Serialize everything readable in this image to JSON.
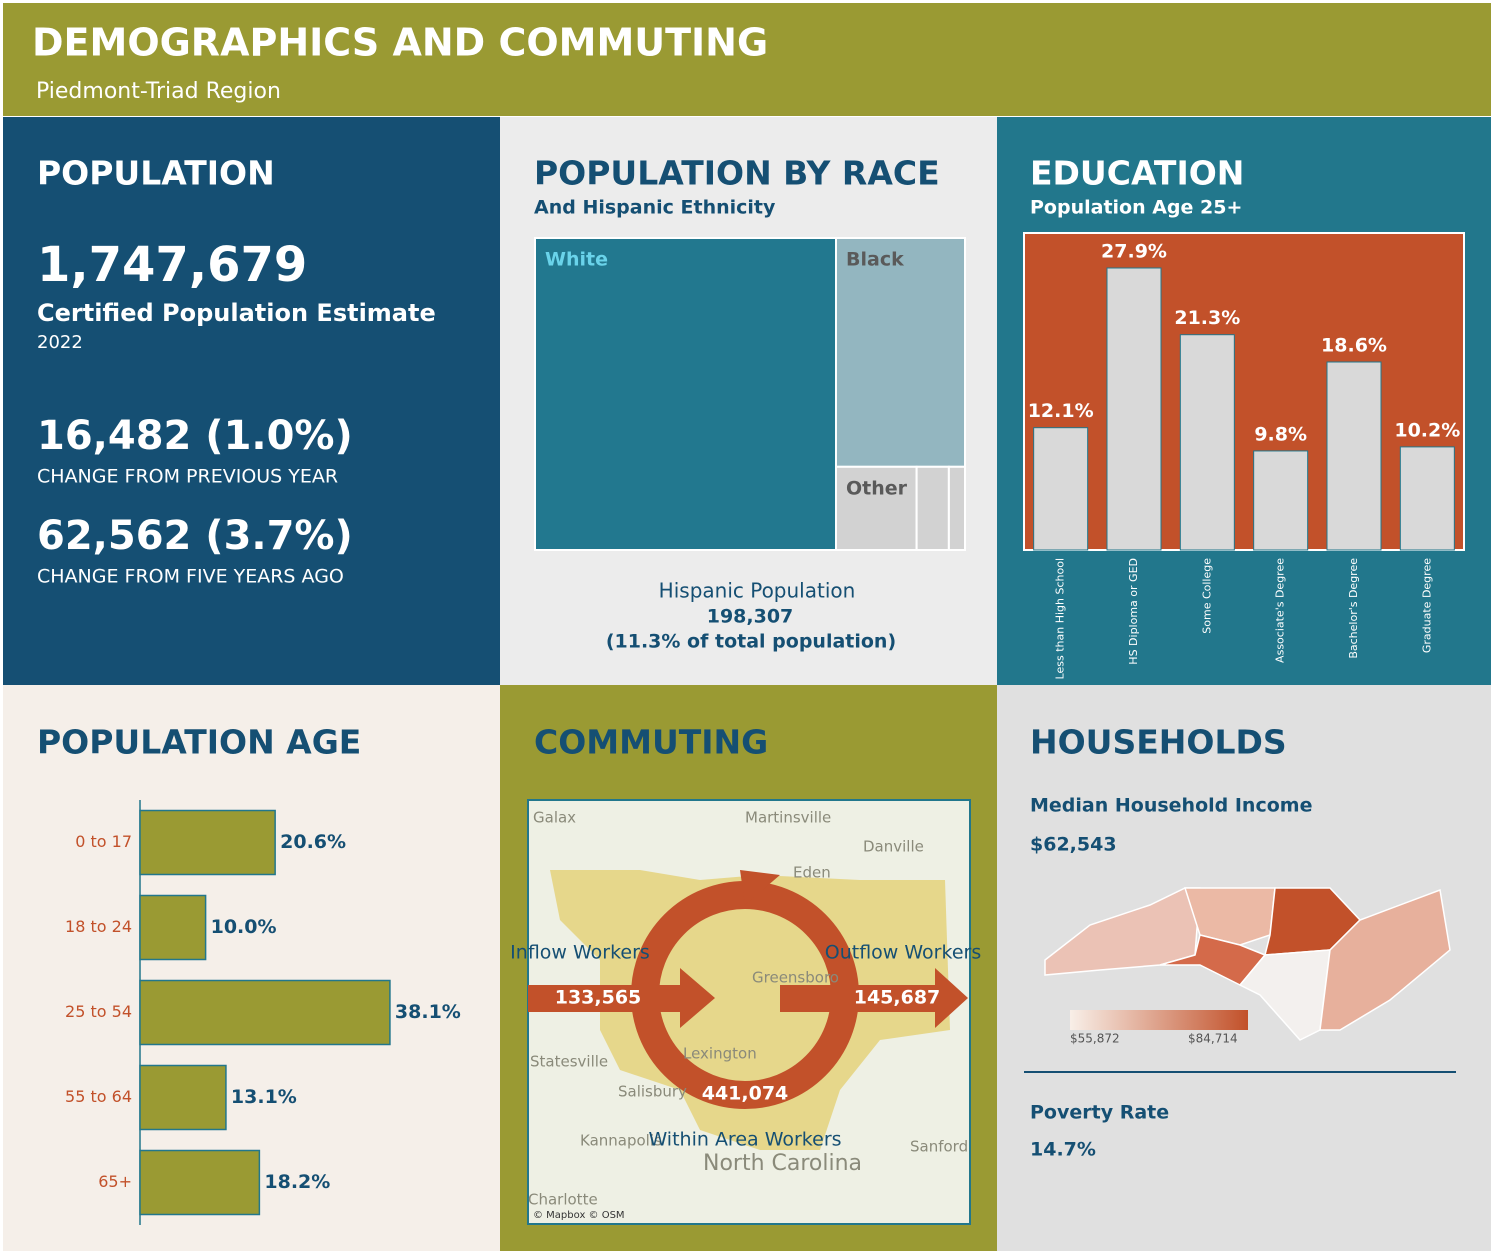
{
  "header": {
    "title": "DEMOGRAPHICS AND COMMUTING",
    "subtitle": "Piedmont-Triad Region"
  },
  "population": {
    "title": "POPULATION",
    "value": "1,747,679",
    "label": "Certified Population Estimate",
    "year": "2022",
    "change_year": "16,482 (1.0%)",
    "change_year_label": "CHANGE FROM PREVIOUS YEAR",
    "change_five": "62,562 (3.7%)",
    "change_five_label": "CHANGE FROM FIVE YEARS AGO"
  },
  "chart_data": [
    {
      "type": "treemap",
      "title": "POPULATION BY RACE",
      "subtitle": "And Hispanic Ethnicity",
      "categories": [
        "White",
        "Black",
        "Other",
        null,
        null
      ],
      "values": [
        70,
        22,
        5,
        2,
        1
      ],
      "colors": [
        "#22788f",
        "#93b6c0",
        "#d2d2d2",
        "#d2d2d2",
        "#d2d2d2"
      ]
    },
    {
      "type": "bar",
      "title": "EDUCATION",
      "subtitle": "Population Age 25+",
      "categories": [
        "Less than High School",
        "HS Diploma or GED",
        "Some College",
        "Associate's Degree",
        "Bachelor's Degree",
        "Graduate Degree"
      ],
      "values": [
        12.1,
        27.9,
        21.3,
        9.8,
        18.6,
        10.2
      ],
      "value_labels": [
        "12.1%",
        "27.9%",
        "21.3%",
        "9.8%",
        "18.6%",
        "10.2%"
      ],
      "color": "#d9d9d9",
      "background": "#c2512a"
    },
    {
      "type": "hbar",
      "title": "POPULATION AGE",
      "categories": [
        "0 to 17",
        "18 to 24",
        "25 to 54",
        "55 to 64",
        "65+"
      ],
      "values": [
        20.6,
        10.0,
        38.1,
        13.1,
        18.2
      ],
      "value_labels": [
        "20.6%",
        "10.0%",
        "38.1%",
        "13.1%",
        "18.2%"
      ],
      "color": "#9a9a33"
    }
  ],
  "hispanic": {
    "label": "Hispanic Population",
    "value": "198,307",
    "share": "(11.3% of total population)"
  },
  "commuting": {
    "title": "COMMUTING",
    "inflow_label": "Inflow Workers",
    "inflow": "133,565",
    "outflow_label": "Outflow Workers",
    "outflow": "145,687",
    "within": "441,074",
    "within_label": "Within Area Workers",
    "places": [
      "Galax",
      "Martinsville",
      "Danville",
      "Eden",
      "Greensboro",
      "Statesville",
      "Salisbury",
      "Lexington",
      "Kannapolis",
      "Sanford",
      "Charlotte",
      "North Carolina"
    ],
    "attribution": "© Mapbox © OSM"
  },
  "households": {
    "title": "HOUSEHOLDS",
    "income_label": "Median Household Income",
    "income": "$62,543",
    "legend_min": "$55,872",
    "legend_max": "$84,714",
    "poverty_label": "Poverty Rate",
    "poverty": "14.7%"
  }
}
